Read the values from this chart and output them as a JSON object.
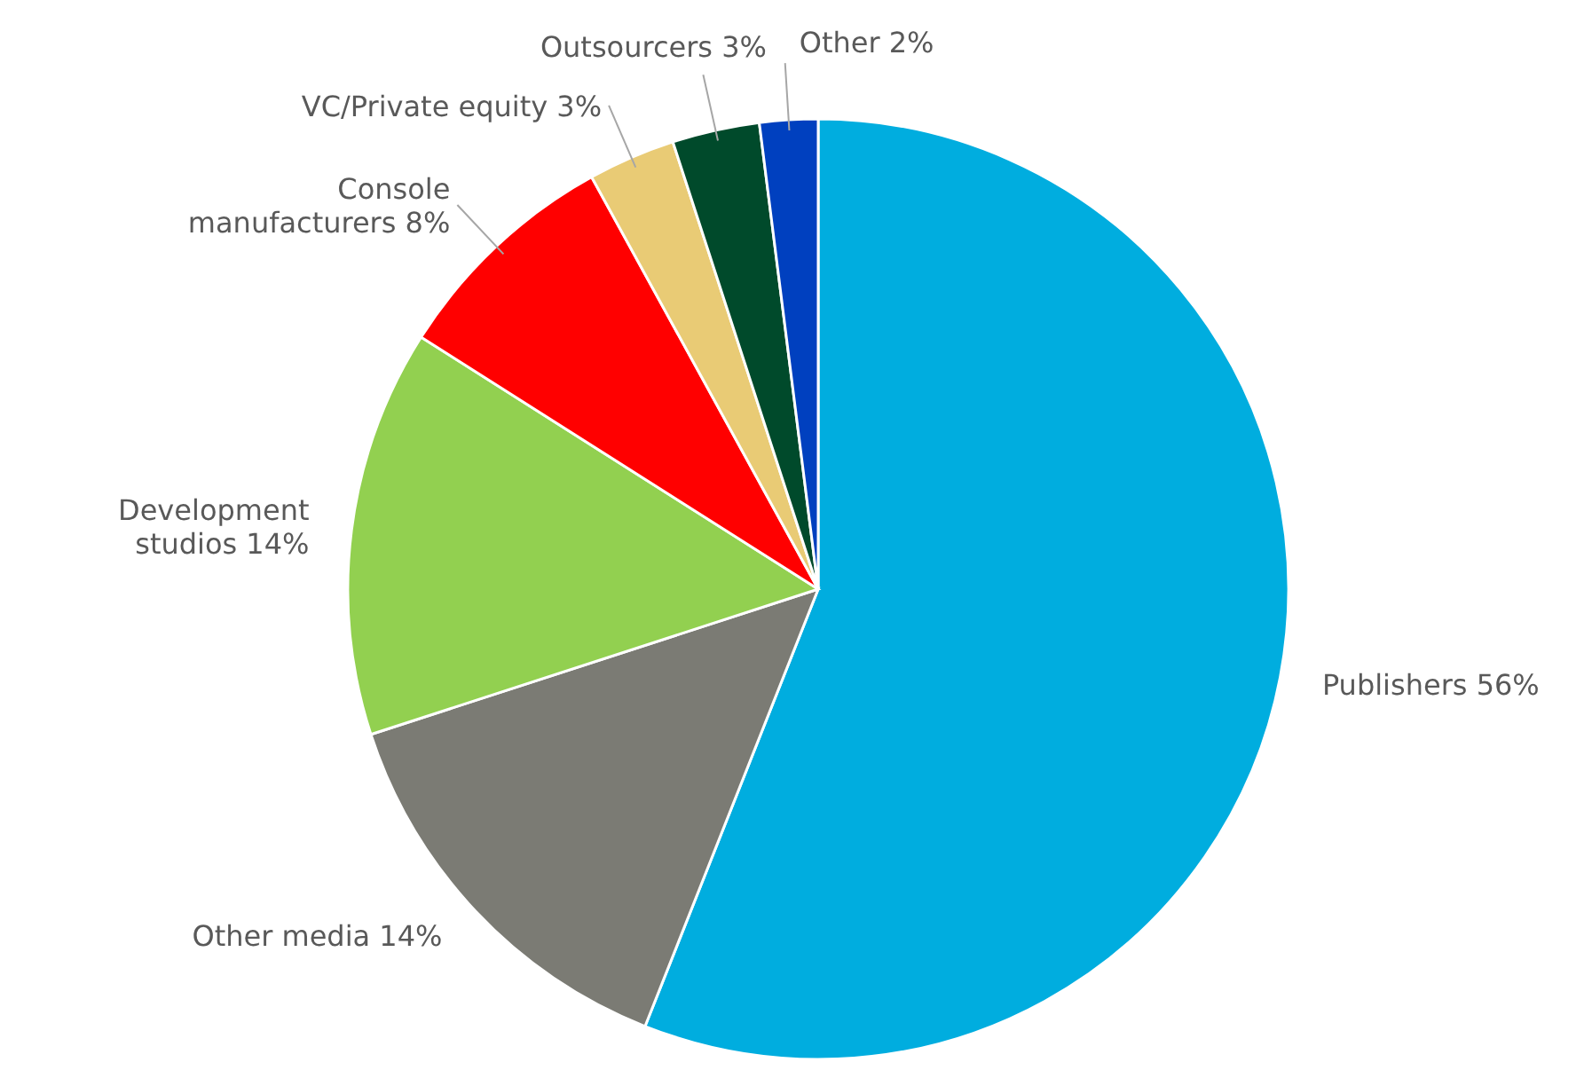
{
  "chart_data": {
    "type": "pie",
    "categories": [
      "Publishers",
      "Other media",
      "Development studios",
      "Console manufacturers",
      "VC/Private equity",
      "Outsourcers",
      "Other"
    ],
    "values": [
      56,
      14,
      14,
      8,
      3,
      3,
      2
    ],
    "colors": [
      "#00addf",
      "#7b7b74",
      "#92d050",
      "#ff0000",
      "#e9cb75",
      "#004a2b",
      "#0040bf"
    ],
    "value_labels": [
      "56%",
      "14%",
      "14%",
      "8%",
      "3%",
      "3%",
      "2%"
    ]
  }
}
